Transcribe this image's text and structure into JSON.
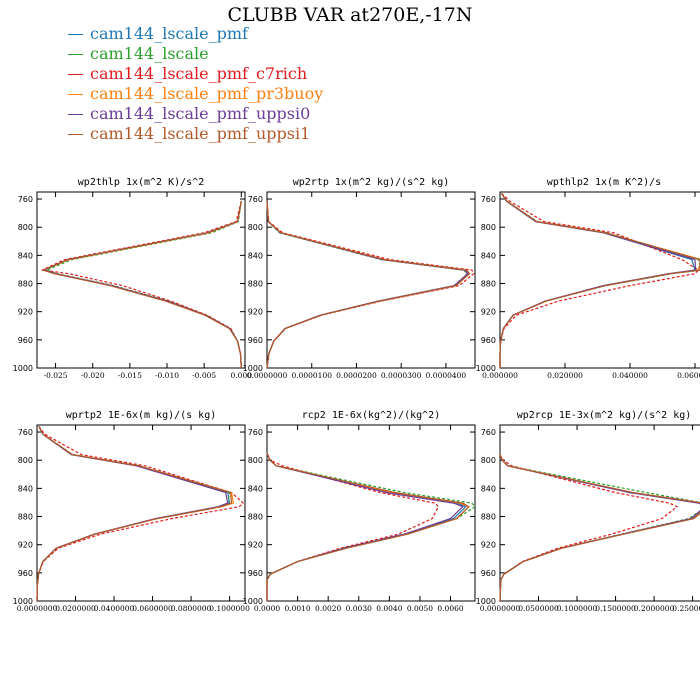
{
  "title": "CLUBB VAR at270E,-17N",
  "colors": {
    "blue": "#1f77b4",
    "green": "#2ca02c",
    "red": "#e31a1c",
    "orange": "#ff7f0e",
    "purple": "#6a3d9a",
    "brown": "#b15928"
  },
  "legend": [
    {
      "label": "cam144_lscale_pmf",
      "color": "#1f77b4"
    },
    {
      "label": "cam144_lscale",
      "color": "#2ca02c"
    },
    {
      "label": "cam144_lscale_pmf_c7rich",
      "color": "#e31a1c"
    },
    {
      "label": "cam144_lscale_pmf_pr3buoy",
      "color": "#ff7f0e"
    },
    {
      "label": "cam144_lscale_pmf_uppsi0",
      "color": "#6a3d9a"
    },
    {
      "label": "cam144_lscale_pmf_uppsi1",
      "color": "#b15928"
    }
  ],
  "chart_data": [
    {
      "type": "line",
      "title": "wp2thlp  1x(m^2 K)/s^2",
      "ylim": [
        1000,
        750
      ],
      "xlim": [
        -0.0275,
        0.0005
      ],
      "yticks": [
        760,
        800,
        840,
        880,
        920,
        960,
        1000
      ],
      "xticks": [
        -0.025,
        -0.02,
        -0.015,
        -0.01,
        -0.005,
        0.0
      ],
      "xtick_labels": [
        "-0.025",
        "-0.020",
        "-0.015",
        "-0.010",
        "-0.005",
        "0.000"
      ],
      "levels": [
        763,
        792,
        808,
        846,
        861,
        866,
        883,
        905,
        925,
        944,
        962,
        980,
        1000
      ],
      "series": [
        {
          "color": "#1f77b4",
          "dashed": false,
          "values": [
            0.0,
            -0.0005,
            -0.0045,
            -0.0233,
            -0.0265,
            -0.025,
            -0.0175,
            -0.01,
            -0.0048,
            -0.0015,
            -0.0005,
            -0.0001,
            0.0
          ]
        },
        {
          "color": "#2ca02c",
          "dashed": true,
          "values": [
            0.0,
            -0.0004,
            -0.004,
            -0.0228,
            -0.0262,
            -0.0248,
            -0.0172,
            -0.0098,
            -0.0047,
            -0.0015,
            -0.0005,
            -0.0001,
            0.0
          ]
        },
        {
          "color": "#e31a1c",
          "dashed": true,
          "values": [
            0.0,
            -0.0007,
            -0.005,
            -0.0238,
            -0.0268,
            -0.0232,
            -0.016,
            -0.0095,
            -0.0046,
            -0.0014,
            -0.0005,
            -0.0001,
            0.0
          ]
        },
        {
          "color": "#ff7f0e",
          "dashed": false,
          "values": [
            0.0,
            -0.0005,
            -0.0044,
            -0.0232,
            -0.0266,
            -0.0251,
            -0.0176,
            -0.0101,
            -0.0048,
            -0.0015,
            -0.0005,
            -0.0001,
            0.0
          ]
        },
        {
          "color": "#6a3d9a",
          "dashed": false,
          "values": [
            0.0,
            -0.0005,
            -0.0046,
            -0.0234,
            -0.0266,
            -0.025,
            -0.0174,
            -0.01,
            -0.0048,
            -0.0015,
            -0.0005,
            -0.0001,
            0.0
          ]
        },
        {
          "color": "#b15928",
          "dashed": false,
          "values": [
            0.0,
            -0.0005,
            -0.0045,
            -0.0233,
            -0.0267,
            -0.0252,
            -0.0177,
            -0.0102,
            -0.0049,
            -0.0016,
            -0.0005,
            -0.0001,
            0.0
          ]
        }
      ]
    },
    {
      "type": "line",
      "title": "wp2rtp  1x(m^2 kg)/(s^2 kg)",
      "ylim": [
        1000,
        750
      ],
      "xlim": [
        0.0,
        4.65e-05
      ],
      "yticks": [
        760,
        800,
        840,
        880,
        920,
        960,
        1000
      ],
      "xticks": [
        0.0,
        1e-05,
        2e-05,
        3e-05,
        4e-05
      ],
      "xtick_labels": [
        "0.0000000",
        "0.0000100",
        "0.0000200",
        "0.0000300",
        "0.0000400"
      ],
      "levels": [
        763,
        792,
        808,
        846,
        861,
        866,
        883,
        905,
        925,
        944,
        962,
        980,
        1000
      ],
      "series": [
        {
          "color": "#1f77b4",
          "dashed": false,
          "values": [
            0.0,
            3e-07,
            3e-06,
            2.6e-05,
            4.43e-05,
            4.5e-05,
            4.2e-05,
            2.5e-05,
            1.2e-05,
            4e-06,
            1.5e-06,
            4e-07,
            0.0
          ]
        },
        {
          "color": "#2ca02c",
          "dashed": true,
          "values": [
            0.0,
            3e-07,
            2.8e-06,
            2.55e-05,
            4.4e-05,
            4.48e-05,
            4.18e-05,
            2.48e-05,
            1.19e-05,
            4e-06,
            1.5e-06,
            4e-07,
            0.0
          ]
        },
        {
          "color": "#e31a1c",
          "dashed": true,
          "values": [
            0.0,
            4e-07,
            3.5e-06,
            2.75e-05,
            4.58e-05,
            4.62e-05,
            4.3e-05,
            2.55e-05,
            1.22e-05,
            4.1e-06,
            1.5e-06,
            4e-07,
            0.0
          ]
        },
        {
          "color": "#ff7f0e",
          "dashed": false,
          "values": [
            0.0,
            3e-07,
            3.1e-06,
            2.62e-05,
            4.46e-05,
            4.52e-05,
            4.22e-05,
            2.51e-05,
            1.2e-05,
            4e-06,
            1.5e-06,
            4e-07,
            0.0
          ]
        },
        {
          "color": "#6a3d9a",
          "dashed": false,
          "values": [
            0.0,
            3e-07,
            3e-06,
            2.58e-05,
            4.41e-05,
            4.49e-05,
            4.19e-05,
            2.49e-05,
            1.19e-05,
            4e-06,
            1.5e-06,
            4e-07,
            0.0
          ]
        },
        {
          "color": "#b15928",
          "dashed": false,
          "values": [
            0.0,
            3e-07,
            3.1e-06,
            2.63e-05,
            4.47e-05,
            4.53e-05,
            4.23e-05,
            2.52e-05,
            1.21e-05,
            4.1e-06,
            1.5e-06,
            4e-07,
            0.0
          ]
        }
      ]
    },
    {
      "type": "line",
      "title": "wpthlp2  1x(m K^2)/s",
      "ylim": [
        1000,
        750
      ],
      "xlim": [
        0.0,
        0.064
      ],
      "yticks": [
        760,
        800,
        840,
        880,
        920,
        960,
        1000
      ],
      "xticks": [
        0.0,
        0.02,
        0.04,
        0.06
      ],
      "xtick_labels": [
        "0.000000",
        "0.020000",
        "0.040000",
        "0.060000"
      ],
      "levels": [
        752,
        763,
        792,
        808,
        846,
        861,
        866,
        883,
        905,
        925,
        944,
        962,
        980,
        1000
      ],
      "series": [
        {
          "color": "#1f77b4",
          "dashed": false,
          "values": [
            0.0005,
            0.002,
            0.011,
            0.032,
            0.059,
            0.06,
            0.052,
            0.032,
            0.014,
            0.004,
            0.001,
            0.0002,
            0.0,
            0.0
          ]
        },
        {
          "color": "#2ca02c",
          "dashed": true,
          "values": [
            0.0005,
            0.0022,
            0.0115,
            0.033,
            0.061,
            0.062,
            0.053,
            0.0325,
            0.0142,
            0.004,
            0.001,
            0.0002,
            0.0,
            0.0
          ]
        },
        {
          "color": "#e31a1c",
          "dashed": true,
          "values": [
            0.0005,
            0.003,
            0.0135,
            0.035,
            0.056,
            0.061,
            0.06,
            0.04,
            0.018,
            0.005,
            0.0012,
            0.0002,
            0.0,
            0.0
          ]
        },
        {
          "color": "#ff7f0e",
          "dashed": false,
          "values": [
            0.0005,
            0.0021,
            0.0112,
            0.0322,
            0.062,
            0.061,
            0.0522,
            0.0322,
            0.0141,
            0.004,
            0.001,
            0.0002,
            0.0,
            0.0
          ]
        },
        {
          "color": "#6a3d9a",
          "dashed": false,
          "values": [
            0.0005,
            0.002,
            0.011,
            0.0318,
            0.06,
            0.0602,
            0.0518,
            0.0318,
            0.0139,
            0.004,
            0.001,
            0.0002,
            0.0,
            0.0
          ]
        },
        {
          "color": "#b15928",
          "dashed": false,
          "values": [
            0.0005,
            0.0021,
            0.0113,
            0.0325,
            0.0615,
            0.0615,
            0.0525,
            0.0325,
            0.0142,
            0.0041,
            0.001,
            0.0002,
            0.0,
            0.0
          ]
        }
      ]
    },
    {
      "type": "line",
      "title": "wprtp2  1E-6x(m kg)/(s kg)",
      "ylim": [
        1000,
        750
      ],
      "xlim": [
        0.0,
        0.108
      ],
      "yticks": [
        760,
        800,
        840,
        880,
        920,
        960,
        1000
      ],
      "xticks": [
        0.0,
        0.02,
        0.04,
        0.06,
        0.08,
        0.1
      ],
      "xtick_labels": [
        "0.0000000",
        "0.0200000",
        "0.0400000",
        "0.0600000",
        "0.0800000",
        "0.1000000"
      ],
      "levels": [
        752,
        763,
        792,
        808,
        846,
        861,
        866,
        883,
        905,
        925,
        944,
        962,
        980,
        1000
      ],
      "series": [
        {
          "color": "#1f77b4",
          "dashed": false,
          "values": [
            0.001,
            0.003,
            0.018,
            0.052,
            0.099,
            0.1,
            0.095,
            0.062,
            0.03,
            0.01,
            0.003,
            0.0008,
            0.0001,
            0.0
          ]
        },
        {
          "color": "#2ca02c",
          "dashed": true,
          "values": [
            0.001,
            0.0032,
            0.0185,
            0.053,
            0.1,
            0.099,
            0.095,
            0.0622,
            0.0301,
            0.01,
            0.003,
            0.0008,
            0.0001,
            0.0
          ]
        },
        {
          "color": "#e31a1c",
          "dashed": true,
          "values": [
            0.001,
            0.004,
            0.023,
            0.056,
            0.101,
            0.107,
            0.105,
            0.07,
            0.033,
            0.011,
            0.0032,
            0.0008,
            0.0001,
            0.0
          ]
        },
        {
          "color": "#ff7f0e",
          "dashed": false,
          "values": [
            0.001,
            0.0031,
            0.0182,
            0.0525,
            0.101,
            0.102,
            0.096,
            0.0625,
            0.0302,
            0.01,
            0.003,
            0.0008,
            0.0001,
            0.0
          ]
        },
        {
          "color": "#6a3d9a",
          "dashed": false,
          "values": [
            0.001,
            0.003,
            0.0178,
            0.0515,
            0.098,
            0.099,
            0.094,
            0.0615,
            0.0298,
            0.0099,
            0.003,
            0.0008,
            0.0001,
            0.0
          ]
        },
        {
          "color": "#b15928",
          "dashed": false,
          "values": [
            0.001,
            0.0031,
            0.0183,
            0.0528,
            0.1005,
            0.101,
            0.0955,
            0.0623,
            0.0302,
            0.01,
            0.003,
            0.0008,
            0.0001,
            0.0
          ]
        }
      ]
    },
    {
      "type": "line",
      "title": "rcp2  1E-6x(kg^2)/(kg^2)",
      "ylim": [
        1000,
        750
      ],
      "xlim": [
        0.0,
        0.0068
      ],
      "yticks": [
        760,
        800,
        840,
        880,
        920,
        960,
        1000
      ],
      "xticks": [
        0.0,
        0.001,
        0.002,
        0.003,
        0.004,
        0.005,
        0.006
      ],
      "xtick_labels": [
        "0.0000",
        "0.0010",
        "0.0020",
        "0.0030",
        "0.0040",
        "0.0050",
        "0.0060"
      ],
      "levels": [
        790,
        800,
        808,
        846,
        861,
        866,
        883,
        905,
        925,
        944,
        962,
        970,
        1000
      ],
      "series": [
        {
          "color": "#1f77b4",
          "dashed": false,
          "values": [
            0.0,
            0.0001,
            0.0003,
            0.004,
            0.0062,
            0.0065,
            0.0061,
            0.0045,
            0.0025,
            0.001,
            0.0001,
            0.0,
            0.0
          ]
        },
        {
          "color": "#2ca02c",
          "dashed": true,
          "values": [
            0.0,
            0.0001,
            0.0003,
            0.0045,
            0.0067,
            0.0068,
            0.0062,
            0.0046,
            0.0026,
            0.001,
            0.0001,
            0.0,
            0.0
          ]
        },
        {
          "color": "#e31a1c",
          "dashed": true,
          "values": [
            0.0,
            0.0001,
            0.0005,
            0.0037,
            0.0055,
            0.0056,
            0.0054,
            0.0043,
            0.0024,
            0.001,
            0.0001,
            0.0,
            0.0
          ]
        },
        {
          "color": "#ff7f0e",
          "dashed": false,
          "values": [
            0.0,
            0.0001,
            0.0003,
            0.0041,
            0.0063,
            0.0066,
            0.0062,
            0.0046,
            0.0025,
            0.001,
            0.0001,
            0.0,
            0.0
          ]
        },
        {
          "color": "#6a3d9a",
          "dashed": false,
          "values": [
            0.0,
            0.0001,
            0.0003,
            0.0039,
            0.0061,
            0.0064,
            0.006,
            0.0045,
            0.0025,
            0.001,
            0.0001,
            0.0,
            0.0
          ]
        },
        {
          "color": "#b15928",
          "dashed": false,
          "values": [
            0.0,
            0.0001,
            0.0003,
            0.0042,
            0.0064,
            0.0066,
            0.0062,
            0.0046,
            0.0026,
            0.001,
            0.0001,
            0.0,
            0.0
          ]
        }
      ]
    },
    {
      "type": "line",
      "title": "wp2rcp  1E-3x(m^2 kg)/(s^2 kg)",
      "ylim": [
        1000,
        750
      ],
      "xlim": [
        0.0,
        0.27
      ],
      "yticks": [
        760,
        800,
        840,
        880,
        920,
        960,
        1000
      ],
      "xticks": [
        0.0,
        0.05,
        0.1,
        0.15,
        0.2,
        0.25
      ],
      "xtick_labels": [
        "0.0000000",
        "0.0500000",
        "0.1000000",
        "0.1500000",
        "0.2000000",
        "0.2500000"
      ],
      "levels": [
        792,
        800,
        808,
        846,
        861,
        866,
        883,
        905,
        925,
        944,
        962,
        970,
        1000
      ],
      "series": [
        {
          "color": "#1f77b4",
          "dashed": false,
          "values": [
            0.0,
            0.003,
            0.01,
            0.17,
            0.26,
            0.268,
            0.25,
            0.16,
            0.08,
            0.03,
            0.005,
            0.001,
            0.0
          ]
        },
        {
          "color": "#2ca02c",
          "dashed": true,
          "values": [
            0.0,
            0.003,
            0.01,
            0.19,
            0.265,
            0.268,
            0.245,
            0.158,
            0.079,
            0.03,
            0.005,
            0.001,
            0.0
          ]
        },
        {
          "color": "#e31a1c",
          "dashed": true,
          "values": [
            0.0,
            0.004,
            0.015,
            0.15,
            0.22,
            0.23,
            0.21,
            0.145,
            0.075,
            0.029,
            0.005,
            0.001,
            0.0
          ]
        },
        {
          "color": "#ff7f0e",
          "dashed": false,
          "values": [
            0.0,
            0.003,
            0.01,
            0.172,
            0.262,
            0.269,
            0.251,
            0.1605,
            0.0802,
            0.03,
            0.005,
            0.001,
            0.0
          ]
        },
        {
          "color": "#6a3d9a",
          "dashed": false,
          "values": [
            0.0,
            0.003,
            0.01,
            0.168,
            0.258,
            0.266,
            0.248,
            0.159,
            0.0798,
            0.03,
            0.005,
            0.001,
            0.0
          ]
        },
        {
          "color": "#b15928",
          "dashed": false,
          "values": [
            0.0,
            0.003,
            0.01,
            0.173,
            0.264,
            0.27,
            0.252,
            0.161,
            0.0805,
            0.0301,
            0.005,
            0.001,
            0.0
          ]
        }
      ]
    }
  ]
}
